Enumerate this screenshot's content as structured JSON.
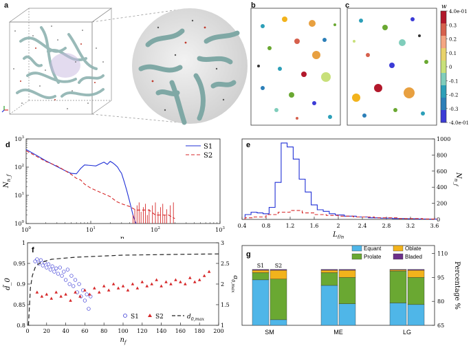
{
  "panels": {
    "a": {
      "label": "a"
    },
    "b": {
      "label": "b"
    },
    "c": {
      "label": "c"
    },
    "colorbar": {
      "title": "w",
      "ticks": [
        "4.0e-01",
        "0.3",
        "0.2",
        "0.1",
        "0",
        "-0.1",
        "-0.2",
        "-0.3",
        "-4.0e-01"
      ],
      "colors": [
        "#b2182b",
        "#d6604d",
        "#f4a582",
        "#e8d36a",
        "#c8e07a",
        "#7fcdbb",
        "#2c9fb8",
        "#2c7fb8",
        "#3b3bd6"
      ]
    }
  },
  "chart_data": [
    {
      "id": "d",
      "label": "d",
      "type": "line",
      "xscale": "log",
      "yscale": "log",
      "xlim": [
        1,
        1000
      ],
      "ylim": [
        1,
        1000
      ],
      "xlabel": "n_f",
      "ylabel": "N_{n_f}",
      "xticks": [
        "10^0",
        "10^1",
        "10^2",
        "10^3"
      ],
      "yticks": [
        "10^0",
        "10^1",
        "10^2",
        "10^3"
      ],
      "legend": [
        "S1",
        "S2"
      ],
      "series": [
        {
          "name": "S1",
          "color": "#1f2fd6",
          "dash": "solid",
          "x": [
            1,
            1.5,
            2,
            3,
            4,
            5,
            6,
            7,
            8,
            10,
            12,
            14,
            16,
            18,
            20,
            22,
            24,
            26,
            28,
            30,
            33,
            36,
            40,
            45,
            50
          ],
          "y": [
            420,
            250,
            170,
            105,
            75,
            60,
            58,
            90,
            120,
            115,
            110,
            130,
            150,
            125,
            160,
            140,
            120,
            100,
            75,
            60,
            30,
            15,
            6,
            2,
            1
          ]
        },
        {
          "name": "S2",
          "color": "#d62728",
          "dash": "dashed",
          "x": [
            1,
            1.5,
            2,
            3,
            4,
            5,
            6,
            7,
            8,
            10,
            12,
            15,
            20,
            25,
            30,
            40,
            50,
            60,
            80,
            100,
            130,
            160,
            200
          ],
          "y": [
            380,
            230,
            160,
            110,
            75,
            55,
            40,
            35,
            25,
            18,
            15,
            12,
            9,
            6,
            5,
            4,
            3,
            3,
            3,
            2,
            2,
            2,
            1.5
          ]
        }
      ]
    },
    {
      "id": "e",
      "label": "e",
      "type": "line",
      "xlim": [
        0.4,
        3.6
      ],
      "ylim": [
        0,
        1000
      ],
      "xlabel": "L_f/η",
      "ylabel": "N_{n_f}",
      "xticks": [
        "0.4",
        "0.8",
        "1.2",
        "1.6",
        "2",
        "2.4",
        "2.8",
        "3.2",
        "3.6"
      ],
      "yticks": [
        "0",
        "200",
        "400",
        "600",
        "800",
        "1000"
      ],
      "series": [
        {
          "name": "S1",
          "color": "#1f2fd6",
          "dash": "solid",
          "x": [
            0.5,
            0.6,
            0.7,
            0.8,
            0.9,
            1.0,
            1.1,
            1.2,
            1.3,
            1.4,
            1.5,
            1.6,
            1.7,
            1.8,
            1.9,
            2.0,
            2.2,
            2.4,
            2.6,
            2.8,
            3.0,
            3.2,
            3.4,
            3.6
          ],
          "y": [
            60,
            90,
            80,
            70,
            150,
            460,
            950,
            900,
            750,
            500,
            340,
            180,
            120,
            100,
            70,
            55,
            40,
            30,
            20,
            15,
            10,
            8,
            5,
            3
          ]
        },
        {
          "name": "S2",
          "color": "#d62728",
          "dash": "dashed",
          "x": [
            0.5,
            0.7,
            0.9,
            1.1,
            1.3,
            1.5,
            1.7,
            1.9,
            2.1,
            2.4,
            2.8,
            3.2,
            3.6
          ],
          "y": [
            20,
            30,
            60,
            90,
            110,
            80,
            60,
            50,
            40,
            30,
            20,
            10,
            5
          ]
        }
      ]
    },
    {
      "id": "f",
      "label": "f",
      "type": "scatter",
      "xlim": [
        0,
        200
      ],
      "ylim": [
        0.8,
        1.0
      ],
      "y2lim": [
        1,
        3
      ],
      "xlabel": "n_f",
      "ylabel": "d̃_0",
      "y2label": "d_{0,max}",
      "xticks": [
        "0",
        "20",
        "40",
        "60",
        "80",
        "100",
        "120",
        "140",
        "160",
        "180",
        "200"
      ],
      "yticks": [
        "0.8",
        "0.85",
        "0.9",
        "0.95",
        "1"
      ],
      "y2ticks": [
        "1",
        "1.5",
        "2",
        "2.5",
        "3"
      ],
      "legend": [
        "S1",
        "S2",
        "d_{0,max}"
      ],
      "series": [
        {
          "name": "S1",
          "color": "#3b3bd6",
          "marker": "circle",
          "x": [
            8,
            10,
            12,
            14,
            16,
            18,
            20,
            22,
            24,
            26,
            28,
            30,
            32,
            34,
            36,
            38,
            40,
            42,
            44,
            46,
            48,
            50,
            52,
            54,
            56,
            58,
            60,
            62,
            64,
            66
          ],
          "y": [
            0.955,
            0.96,
            0.95,
            0.958,
            0.945,
            0.952,
            0.94,
            0.948,
            0.935,
            0.943,
            0.93,
            0.938,
            0.925,
            0.94,
            0.92,
            0.93,
            0.91,
            0.935,
            0.9,
            0.92,
            0.895,
            0.91,
            0.88,
            0.9,
            0.87,
            0.885,
            0.86,
            0.875,
            0.84,
            0.87
          ]
        },
        {
          "name": "S2",
          "color": "#d62728",
          "marker": "triangle",
          "x": [
            10,
            15,
            20,
            25,
            30,
            35,
            40,
            45,
            50,
            55,
            60,
            65,
            70,
            75,
            80,
            85,
            90,
            95,
            100,
            105,
            110,
            115,
            120,
            125,
            130,
            135,
            140,
            145,
            150,
            155,
            160,
            165,
            170,
            175,
            180,
            185,
            190
          ],
          "y": [
            0.88,
            0.87,
            0.875,
            0.865,
            0.88,
            0.87,
            0.875,
            0.86,
            0.88,
            0.87,
            0.885,
            0.875,
            0.89,
            0.88,
            0.895,
            0.885,
            0.9,
            0.89,
            0.895,
            0.885,
            0.9,
            0.89,
            0.905,
            0.895,
            0.9,
            0.91,
            0.895,
            0.905,
            0.9,
            0.91,
            0.905,
            0.9,
            0.915,
            0.905,
            0.91,
            0.92,
            0.93
          ]
        },
        {
          "name": "d_{0,max}",
          "color": "#222222",
          "dash": "dashed",
          "axis": "y2",
          "x": [
            1,
            3,
            5,
            8,
            12,
            18,
            25,
            35,
            50,
            70,
            100,
            130,
            160,
            200
          ],
          "y": [
            1.0,
            1.9,
            2.2,
            2.4,
            2.5,
            2.55,
            2.6,
            2.62,
            2.65,
            2.67,
            2.7,
            2.71,
            2.72,
            2.73
          ]
        }
      ]
    },
    {
      "id": "g",
      "label": "g",
      "type": "bar",
      "stacked": true,
      "groups": [
        "SM",
        "ME",
        "LG"
      ],
      "subgroups": [
        "S1",
        "S2"
      ],
      "ylabel": "Percentage %",
      "ylim": [
        65,
        115
      ],
      "yticks": [
        "65",
        "80",
        "95",
        "110"
      ],
      "legend": [
        "Equant",
        "Oblate",
        "Prolate",
        "Bladed"
      ],
      "colors": {
        "Equant": "#4fb6e8",
        "Prolate": "#6aa832",
        "Oblate": "#f2b31c",
        "Bladed": "#6b2f8a"
      },
      "bars": [
        {
          "group": "SM",
          "sub": "S1",
          "Equant": 93.5,
          "Prolate": 4.5,
          "Oblate": 1.5,
          "Bladed": 0.5
        },
        {
          "group": "SM",
          "sub": "S2",
          "Equant": 68.5,
          "Prolate": 25.5,
          "Oblate": 5.5,
          "Bladed": 0.5
        },
        {
          "group": "ME",
          "sub": "S1",
          "Equant": 90.0,
          "Prolate": 8.0,
          "Oblate": 1.5,
          "Bladed": 0.5
        },
        {
          "group": "ME",
          "sub": "S2",
          "Equant": 78.5,
          "Prolate": 16.5,
          "Oblate": 4.5,
          "Bladed": 0.5
        },
        {
          "group": "LG",
          "sub": "S1",
          "Equant": 79.0,
          "Prolate": 20.0,
          "Oblate": 0.7,
          "Bladed": 0.3
        },
        {
          "group": "LG",
          "sub": "S2",
          "Equant": 78.0,
          "Prolate": 17.0,
          "Oblate": 4.5,
          "Bladed": 0.5
        }
      ]
    }
  ]
}
